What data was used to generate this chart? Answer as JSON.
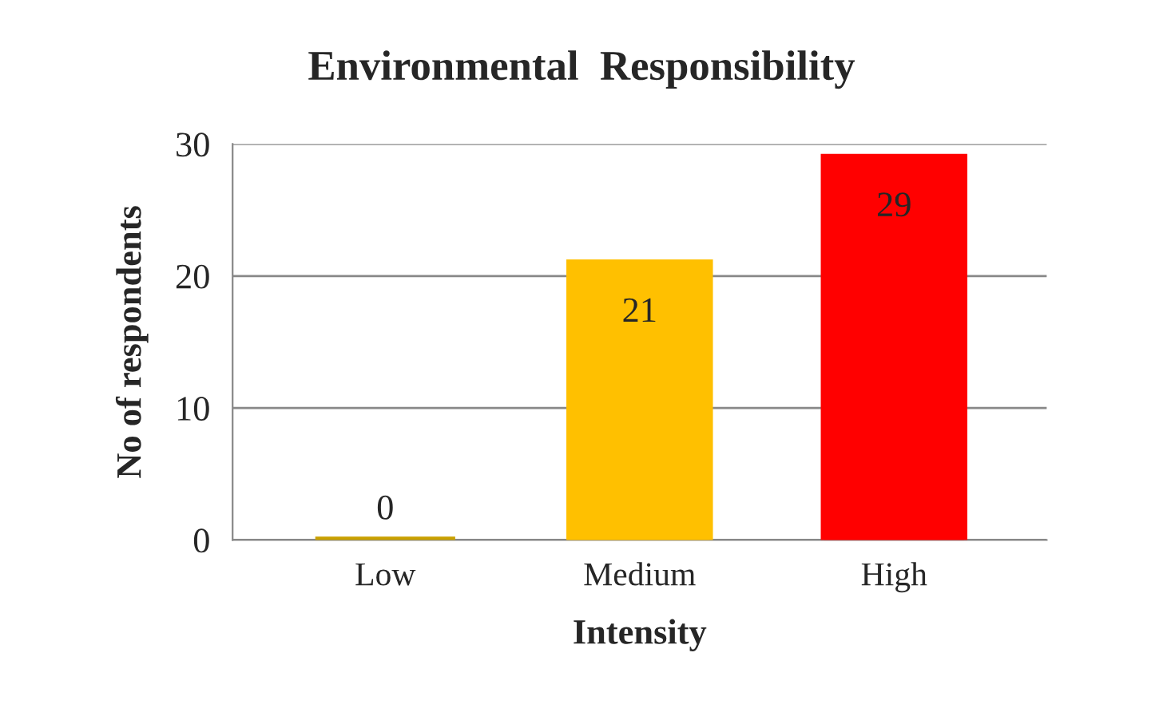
{
  "chart_data": {
    "type": "bar",
    "title": "Environmental  Responsibility",
    "xlabel": "Intensity",
    "ylabel": "No of respondents",
    "categories": [
      "Low",
      "Medium",
      "High"
    ],
    "values": [
      0,
      21,
      29
    ],
    "colors": [
      "#c9a000",
      "#ffc000",
      "#ff0000"
    ],
    "ylim": [
      0,
      30
    ],
    "yticks": [
      0,
      10,
      20,
      30
    ],
    "grid": "y",
    "data_labels": true
  }
}
